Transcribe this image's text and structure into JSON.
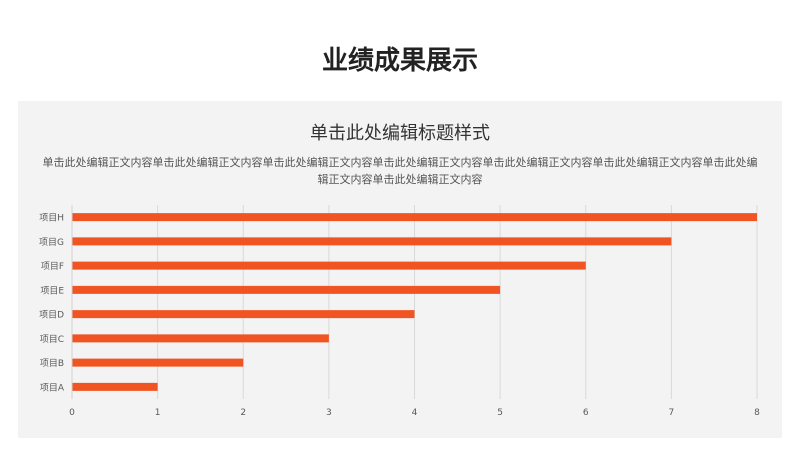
{
  "slide": {
    "title": "业绩成果展示"
  },
  "chart_data": {
    "type": "bar",
    "orientation": "horizontal",
    "title": "单击此处编辑标题样式",
    "description": "单击此处编辑正文内容单击此处编辑正文内容单击此处编辑正文内容单击此处编辑正文内容单击此处编辑正文内容单击此处编辑正文内容单击此处编辑正文内容单击此处编辑正文内容",
    "categories": [
      "项目A",
      "项目B",
      "项目C",
      "项目D",
      "项目E",
      "项目F",
      "项目G",
      "项目H"
    ],
    "values": [
      1,
      2,
      3,
      4,
      5,
      6,
      7,
      8
    ],
    "xlim": [
      0,
      8
    ],
    "xticks": [
      0,
      1,
      2,
      3,
      4,
      5,
      6,
      7,
      8
    ],
    "grid": true,
    "legend": "none",
    "bar_color": "#f05423"
  }
}
